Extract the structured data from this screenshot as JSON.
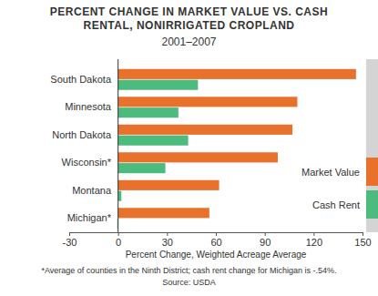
{
  "chart_data": {
    "type": "bar",
    "orientation": "horizontal",
    "title": "PERCENT CHANGE IN MARKET VALUE VS. CASH RENTAL, NONIRRIGATED CROPLAND",
    "subtitle": "2001–2007",
    "x_label": "Percent Change, Weighted Acreage Average",
    "categories": [
      "South Dakota",
      "Minnesota",
      "North Dakota",
      "Wisconsin*",
      "Montana",
      "Michigan*"
    ],
    "series": [
      {
        "name": "Market Value",
        "color": "#e8712c",
        "values": [
          146,
          110,
          107,
          98,
          62,
          56
        ]
      },
      {
        "name": "Cash Rent",
        "color": "#4dbb7d",
        "values": [
          49,
          37,
          43,
          29,
          2,
          -0.54
        ]
      }
    ],
    "xlim": [
      -30,
      150
    ],
    "xticks": [
      -30,
      0,
      30,
      60,
      90,
      120,
      150
    ],
    "grid": false,
    "legend": "right",
    "annotations": [
      "*Average of counties in the Ninth District; cash rent change for Michigan is -.54%.",
      "Source: USDA"
    ]
  }
}
